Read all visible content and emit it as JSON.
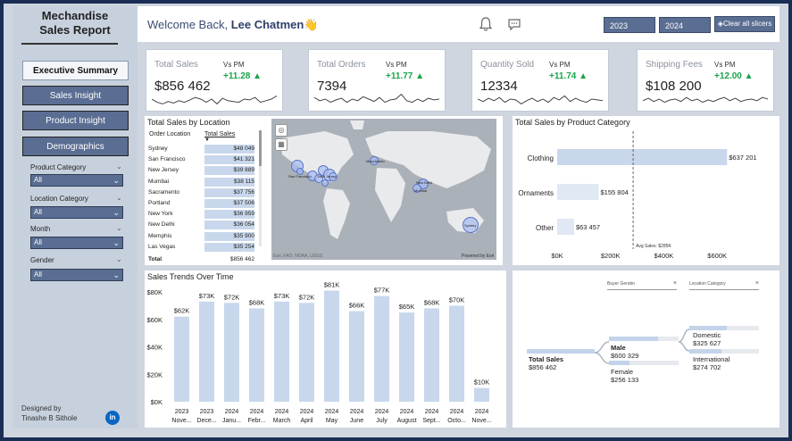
{
  "sidebar": {
    "title_line1": "Mechandise",
    "title_line2": "Sales Report",
    "nav": [
      {
        "label": "Executive Summary",
        "active": true
      },
      {
        "label": "Sales Insight",
        "active": false
      },
      {
        "label": "Product Insight",
        "active": false
      },
      {
        "label": "Demographics",
        "active": false
      }
    ],
    "filters": [
      {
        "label": "Product Category",
        "value": "All"
      },
      {
        "label": "Location Category",
        "value": "All"
      },
      {
        "label": "Month",
        "value": "All"
      },
      {
        "label": "Gender",
        "value": "All"
      }
    ],
    "designed_by_label": "Designed by",
    "designer": "Tinashe B Sithole",
    "linkedin_text": "in"
  },
  "header": {
    "welcome_prefix": "Welcome Back, ",
    "user_name": "Lee Chatmen",
    "wave_emoji": "👋",
    "year_buttons": [
      "2023",
      "2024"
    ],
    "clear_label": "Clear all slicers"
  },
  "kpis": [
    {
      "title": "Total Sales",
      "vs": "Vs PM",
      "value": "$856 462",
      "delta": "+11.28",
      "spark": [
        0.5,
        0.3,
        0.2,
        0.35,
        0.25,
        0.4,
        0.3,
        0.45,
        0.6,
        0.5,
        0.3,
        0.5,
        0.2,
        0.55,
        0.4,
        0.35,
        0.3,
        0.5,
        0.45,
        0.6,
        0.3,
        0.4,
        0.5,
        0.7
      ]
    },
    {
      "title": "Total Orders",
      "vs": "Vs PM",
      "value": "7394",
      "delta": "+11.77",
      "spark": [
        0.6,
        0.4,
        0.5,
        0.3,
        0.45,
        0.55,
        0.3,
        0.5,
        0.4,
        0.65,
        0.5,
        0.35,
        0.6,
        0.3,
        0.45,
        0.5,
        0.8,
        0.4,
        0.3,
        0.5,
        0.35,
        0.55,
        0.45,
        0.5
      ]
    },
    {
      "title": "Quantity Sold",
      "vs": "Vs PM",
      "value": "12334",
      "delta": "+11.74",
      "spark": [
        0.5,
        0.35,
        0.55,
        0.4,
        0.6,
        0.3,
        0.5,
        0.45,
        0.2,
        0.4,
        0.55,
        0.35,
        0.5,
        0.3,
        0.6,
        0.45,
        0.7,
        0.35,
        0.55,
        0.4,
        0.3,
        0.5,
        0.45,
        0.4
      ]
    },
    {
      "title": "Shipping Fees",
      "vs": "Vs PM",
      "value": "$108 200",
      "delta": "+12.00",
      "spark": [
        0.4,
        0.55,
        0.35,
        0.5,
        0.3,
        0.45,
        0.5,
        0.35,
        0.6,
        0.4,
        0.5,
        0.3,
        0.45,
        0.35,
        0.5,
        0.6,
        0.4,
        0.55,
        0.35,
        0.45,
        0.5,
        0.4,
        0.6,
        0.5
      ]
    }
  ],
  "location_panel": {
    "title": "Total Sales by Location",
    "col_location": "Order Location",
    "col_sales": "Total Sales",
    "rows": [
      {
        "city": "Sydney",
        "value": "$48 049"
      },
      {
        "city": "San Francisco",
        "value": "$41 321"
      },
      {
        "city": "New Jersey",
        "value": "$39 889"
      },
      {
        "city": "Mumbai",
        "value": "$38 115"
      },
      {
        "city": "Sacramento",
        "value": "$37 756"
      },
      {
        "city": "Portland",
        "value": "$37 506"
      },
      {
        "city": "New York",
        "value": "$36 959"
      },
      {
        "city": "New Delhi",
        "value": "$36 054"
      },
      {
        "city": "Memphis",
        "value": "$35 900"
      },
      {
        "city": "Las Vegas",
        "value": "$35 254"
      }
    ],
    "total_label": "Total",
    "total_value": "$856 462",
    "map_credit": "Esri, FAO, NOAA, USGS",
    "map_powered": "Powered by Esri",
    "map_labels": [
      "San Francisco",
      "New Jersey",
      "Manchester",
      "New Delhi",
      "Mumbai",
      "Sydney"
    ]
  },
  "category_panel": {
    "title": "Total Sales by Product Category",
    "avg_label": "Avg Sales: $285K"
  },
  "trend_panel": {
    "title": "Sales Trends Over Time"
  },
  "decomp_panel": {
    "slot1": "Buyer Gender",
    "slot2": "Location Category",
    "root_label": "Total Sales",
    "root_value": "$856 462",
    "male_label": "Male",
    "male_value": "$600 329",
    "female_label": "Female",
    "female_value": "$256 133",
    "domestic_label": "Domestic",
    "domestic_value": "$325 627",
    "international_label": "International",
    "international_value": "$274 702"
  },
  "colors": {
    "accent": "#5a6d92",
    "bar": "#c8d7ec",
    "positive": "#1aa34a"
  },
  "chart_data": [
    {
      "type": "bar",
      "orientation": "horizontal",
      "title": "Total Sales by Product Category",
      "categories": [
        "Clothing",
        "Ornaments",
        "Other"
      ],
      "values": [
        637201,
        155804,
        63457
      ],
      "data_labels": [
        "$637 201",
        "$155 804",
        "$63 457"
      ],
      "xlim": [
        0,
        700000
      ],
      "x_ticks": [
        "$0K",
        "$200K",
        "$400K",
        "$600K"
      ],
      "reference_line": {
        "label": "Avg Sales: $285K",
        "value": 285000
      }
    },
    {
      "type": "bar",
      "title": "Sales Trends Over Time",
      "categories": [
        [
          "2023",
          "Nove..."
        ],
        [
          "2023",
          "Dece..."
        ],
        [
          "2024",
          "Janu..."
        ],
        [
          "2024",
          "Febr..."
        ],
        [
          "2024",
          "March"
        ],
        [
          "2024",
          "April"
        ],
        [
          "2024",
          "May"
        ],
        [
          "2024",
          "June"
        ],
        [
          "2024",
          "July"
        ],
        [
          "2024",
          "August"
        ],
        [
          "2024",
          "Sept..."
        ],
        [
          "2024",
          "Octo..."
        ],
        [
          "2024",
          "Nove..."
        ]
      ],
      "values": [
        62,
        73,
        72,
        68,
        73,
        72,
        81,
        66,
        77,
        65,
        68,
        70,
        10
      ],
      "data_labels": [
        "$62K",
        "$73K",
        "$72K",
        "$68K",
        "$73K",
        "$72K",
        "$81K",
        "$66K",
        "$77K",
        "$65K",
        "$68K",
        "$70K",
        "$10K"
      ],
      "ylim": [
        0,
        80
      ],
      "y_ticks": [
        "$0K",
        "$20K",
        "$40K",
        "$60K",
        "$80K"
      ]
    }
  ]
}
